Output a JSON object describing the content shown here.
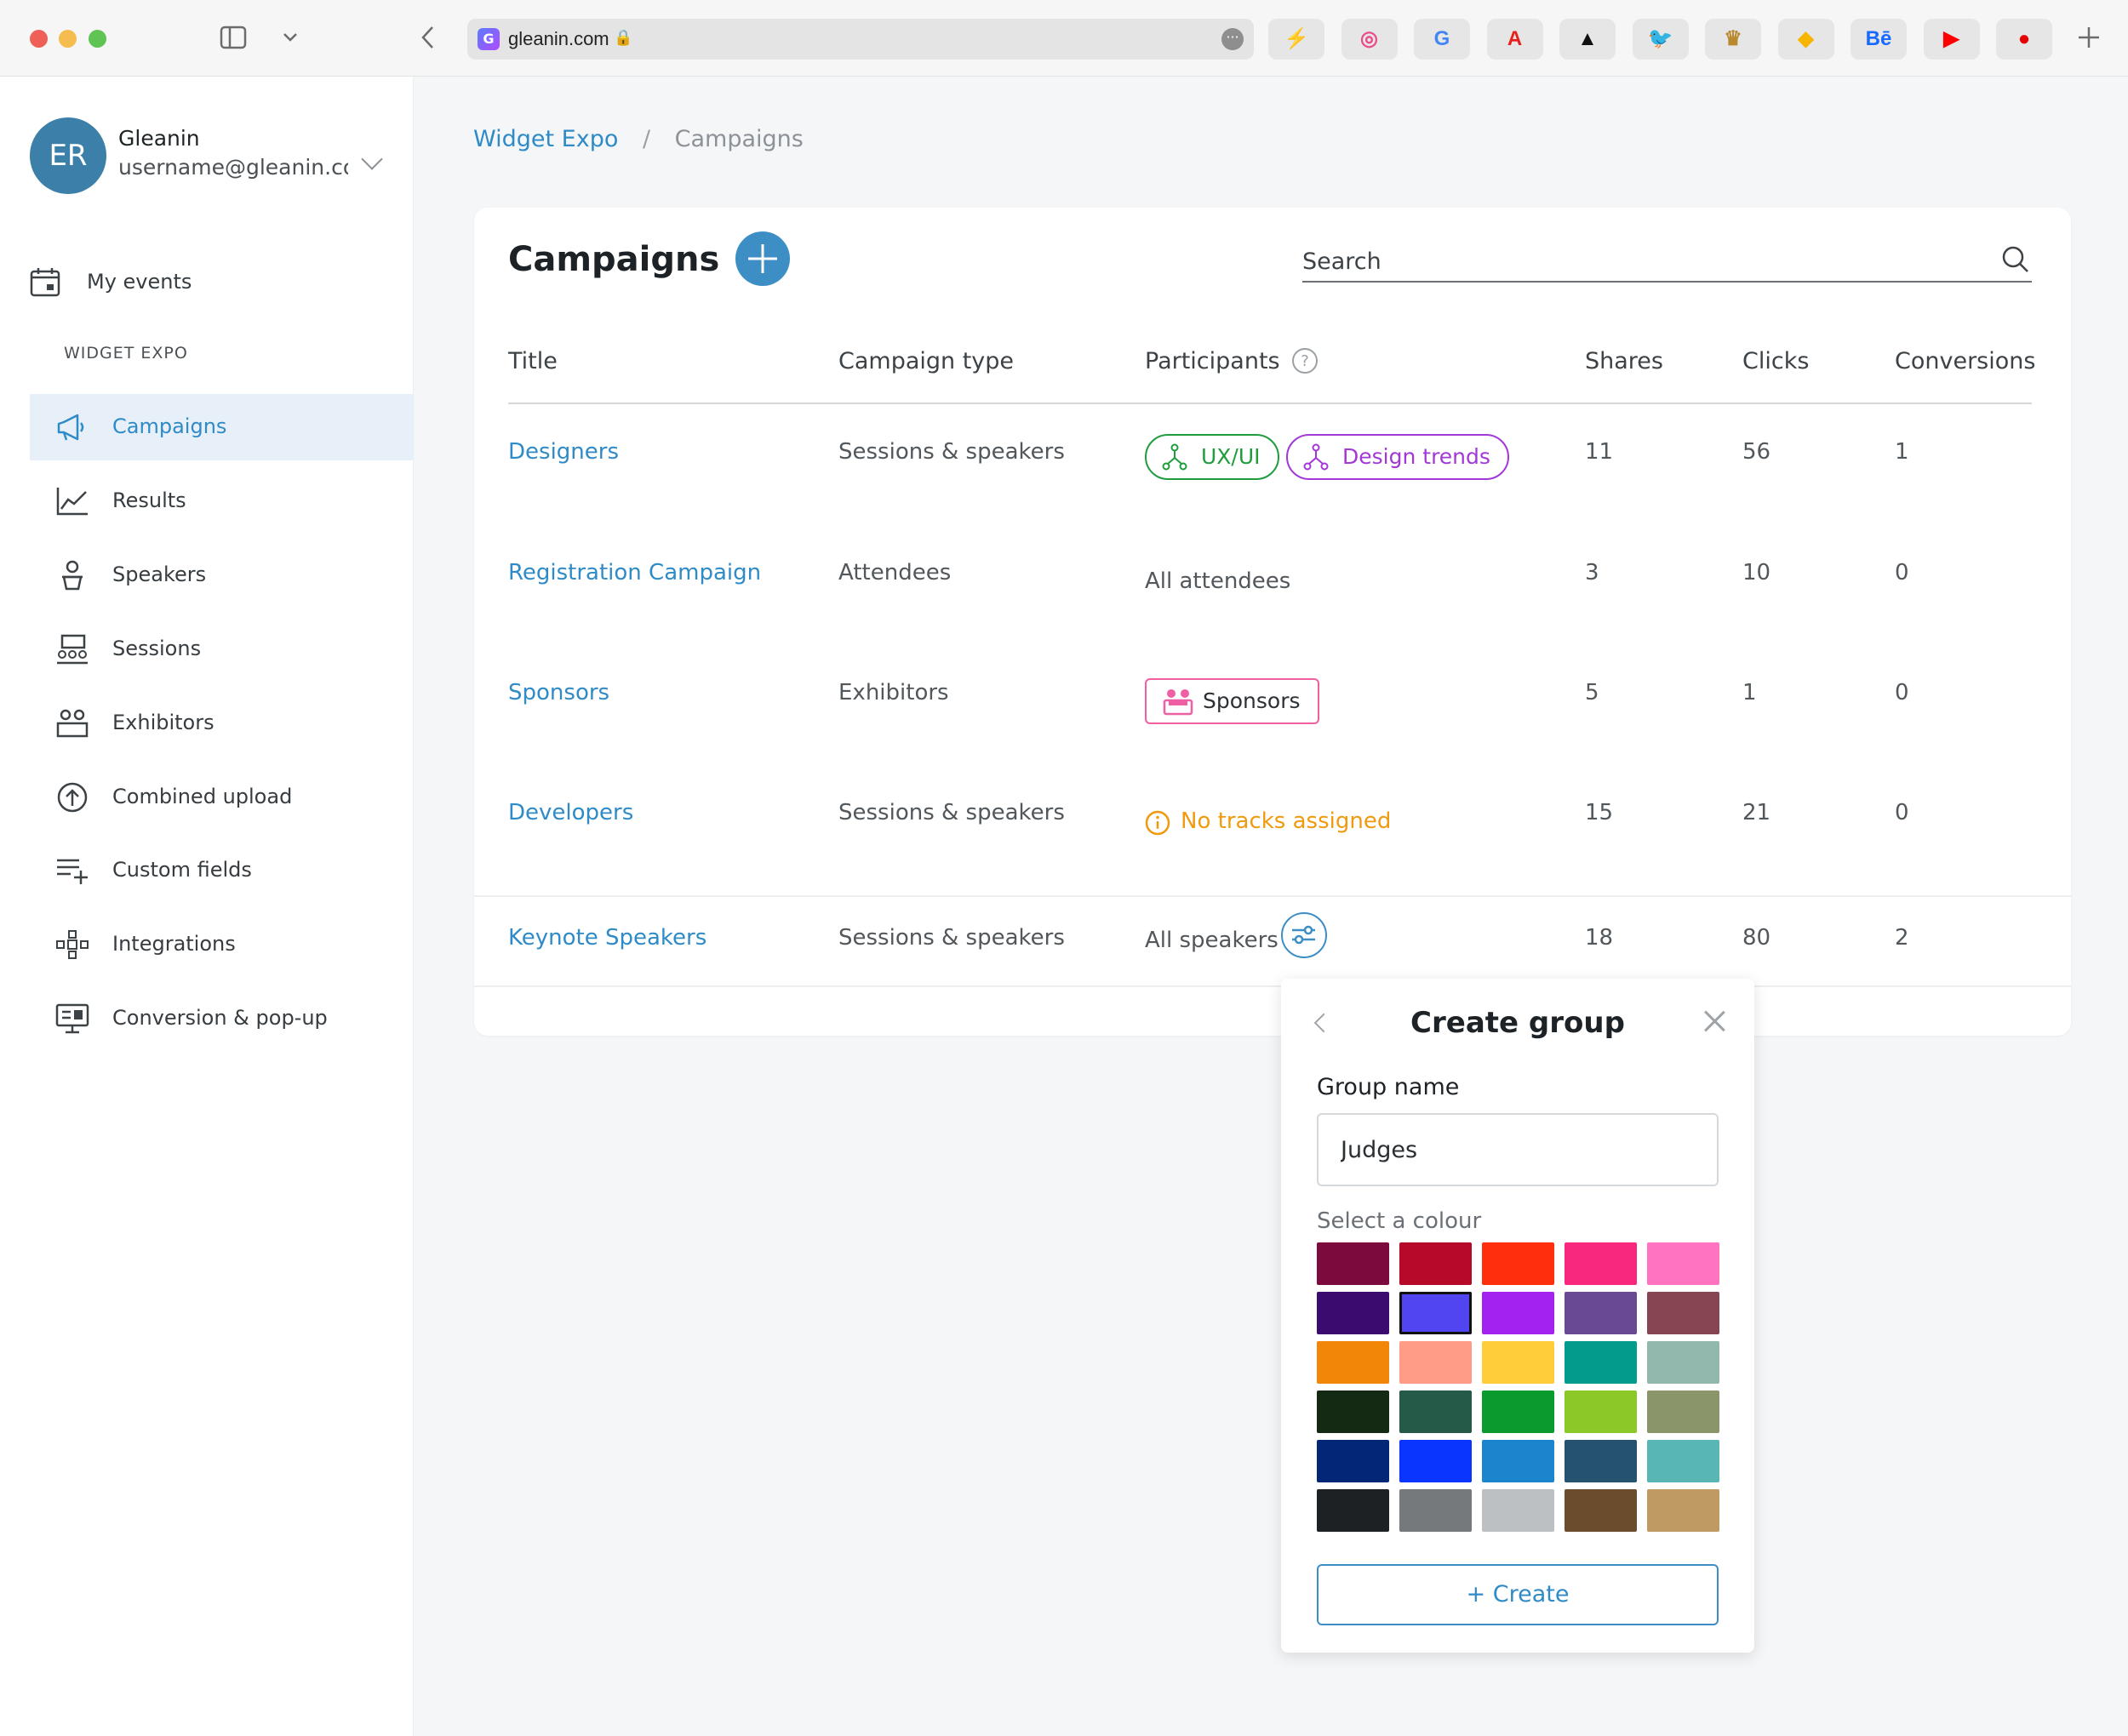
{
  "browser": {
    "url": "gleanin.com",
    "bookmarks": [
      {
        "icon": "lightning-icon",
        "glyph": "⚡",
        "color": "#f5a500"
      },
      {
        "icon": "dribbble-icon",
        "glyph": "◎",
        "color": "#ea4c89"
      },
      {
        "icon": "google-icon",
        "glyph": "G",
        "color": "#4285f4"
      },
      {
        "icon": "adobe-icon",
        "glyph": "A",
        "color": "#e8201a"
      },
      {
        "icon": "adidas-icon",
        "glyph": "▲",
        "color": "#111111"
      },
      {
        "icon": "twitter-icon",
        "glyph": "🐦",
        "color": "#1da1f2"
      },
      {
        "icon": "crown-icon",
        "glyph": "♛",
        "color": "#b8892f"
      },
      {
        "icon": "sketch-icon",
        "glyph": "◆",
        "color": "#f7b500"
      },
      {
        "icon": "behance-icon",
        "glyph": "Bē",
        "color": "#1769ff"
      },
      {
        "icon": "youtube-icon",
        "glyph": "▶",
        "color": "#ff0000"
      },
      {
        "icon": "vodafone-icon",
        "glyph": "●",
        "color": "#e60000"
      }
    ]
  },
  "account": {
    "initials": "ER",
    "name": "Gleanin",
    "email": "username@gleanin.co..."
  },
  "sidebar": {
    "my_events": "My events",
    "section": "WIDGET EXPO",
    "items": [
      {
        "label": "Campaigns",
        "icon": "megaphone-icon",
        "active": true
      },
      {
        "label": "Results",
        "icon": "line-chart-icon"
      },
      {
        "label": "Speakers",
        "icon": "speaker-icon"
      },
      {
        "label": "Sessions",
        "icon": "sessions-icon"
      },
      {
        "label": "Exhibitors",
        "icon": "exhibitors-icon"
      },
      {
        "label": "Combined upload",
        "icon": "upload-icon"
      },
      {
        "label": "Custom fields",
        "icon": "custom-fields-icon"
      },
      {
        "label": "Integrations",
        "icon": "integrations-icon"
      },
      {
        "label": "Conversion & pop-up",
        "icon": "conversion-icon"
      }
    ]
  },
  "breadcrumb": {
    "parent": "Widget Expo",
    "separator": "/",
    "current": "Campaigns"
  },
  "campaigns": {
    "title": "Campaigns",
    "search_placeholder": "Search",
    "columns": [
      "Title",
      "Campaign type",
      "Participants",
      "Shares",
      "Clicks",
      "Conversions"
    ],
    "rows": [
      {
        "title": "Designers",
        "type": "Sessions & speakers",
        "participants": {
          "kind": "chips",
          "chips": [
            {
              "label": "UX/UI",
              "color": "#1f9d3c"
            },
            {
              "label": "Design trends",
              "color": "#a238d6"
            }
          ]
        },
        "shares": "11",
        "clicks": "56",
        "conversions": "1"
      },
      {
        "title": "Registration Campaign",
        "type": "Attendees",
        "participants": {
          "kind": "text",
          "text": "All attendees"
        },
        "shares": "3",
        "clicks": "10",
        "conversions": "0"
      },
      {
        "title": "Sponsors",
        "type": "Exhibitors",
        "participants": {
          "kind": "tag",
          "text": "Sponsors",
          "color": "#ef5fa3"
        },
        "shares": "5",
        "clicks": "1",
        "conversions": "0"
      },
      {
        "title": "Developers",
        "type": "Sessions & speakers",
        "participants": {
          "kind": "warning",
          "text": "No tracks assigned",
          "color": "#f09a10"
        },
        "shares": "15",
        "clicks": "21",
        "conversions": "0"
      },
      {
        "title": "Keynote Speakers",
        "type": "Sessions & speakers",
        "participants": {
          "kind": "text-filter",
          "text": "All speakers"
        },
        "shares": "18",
        "clicks": "80",
        "conversions": "2"
      }
    ]
  },
  "create_group": {
    "title": "Create group",
    "name_label": "Group name",
    "name_value": "Judges",
    "colour_label": "Select a colour",
    "selected_index": 6,
    "colours": [
      "#7d0a3c",
      "#b7092a",
      "#ff2f0e",
      "#f7287e",
      "#ff73c1",
      "#3b0b70",
      "#5045f0",
      "#a322f0",
      "#694a92",
      "#874552",
      "#f28608",
      "#ff9c88",
      "#ffcd3a",
      "#039b8c",
      "#92b8ae",
      "#142a13",
      "#245a47",
      "#0a9a2e",
      "#8cc827",
      "#8a956a",
      "#042676",
      "#0935ff",
      "#1a84cd",
      "#25536f",
      "#58b6b5",
      "#1e2124",
      "#75797c",
      "#bcc0c2",
      "#6b4d2e",
      "#bf9a62"
    ],
    "create_label": "Create"
  }
}
